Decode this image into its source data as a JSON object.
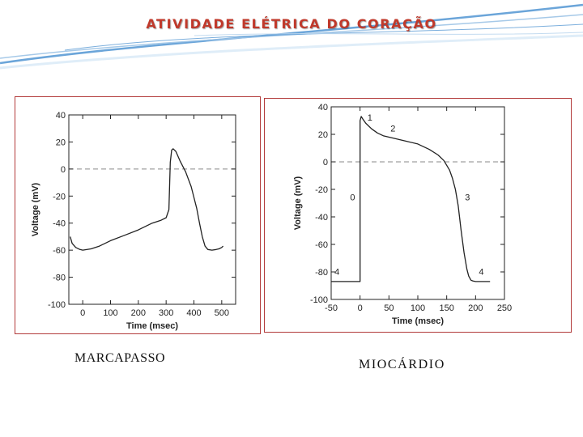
{
  "slide": {
    "title": "ATIVIDADE ELÉTRICA DO CORAÇÃO",
    "caption_left": "MARCAPASSO",
    "caption_right": "MIOCÁRDIO",
    "accent_color": "#c0392b",
    "swoosh_color": "#5b9bd5",
    "frame_color": "#b23a3a"
  },
  "chart_data": [
    {
      "type": "line",
      "title": "",
      "xlabel": "Time (msec)",
      "ylabel": "Voltage (mV)",
      "xlim": [
        -50,
        550
      ],
      "ylim": [
        -100,
        40
      ],
      "xticks": [
        0,
        100,
        200,
        300,
        400,
        500
      ],
      "yticks": [
        40,
        20,
        0,
        -20,
        -40,
        -60,
        -80,
        -100
      ],
      "grid": false,
      "reference_line": {
        "y": 0,
        "style": "dashed"
      },
      "series": [
        {
          "x": [
            -45,
            -38,
            -25,
            -10,
            0,
            30,
            60,
            100,
            150,
            200,
            250,
            280,
            300,
            310,
            315,
            320,
            325,
            335,
            350,
            370,
            390,
            410,
            420,
            430,
            440,
            450,
            465,
            480,
            490,
            500,
            505
          ],
          "y": [
            -50,
            -55,
            -58,
            -59.5,
            -60,
            -59,
            -57,
            -53,
            -49,
            -45,
            -40,
            -38,
            -36,
            -30,
            5,
            14,
            15,
            13,
            6,
            -2,
            -13,
            -29,
            -40,
            -50,
            -57,
            -59.5,
            -60,
            -59.5,
            -59,
            -58,
            -57
          ]
        }
      ],
      "annotations": []
    },
    {
      "type": "line",
      "title": "",
      "xlabel": "Time (msec)",
      "ylabel": "Voltage (mV)",
      "xlim": [
        -50,
        250
      ],
      "ylim": [
        -100,
        40
      ],
      "xticks": [
        -50,
        0,
        50,
        100,
        150,
        200,
        250
      ],
      "yticks": [
        40,
        20,
        0,
        -20,
        -40,
        -60,
        -80,
        -100
      ],
      "grid": false,
      "reference_line": {
        "y": 0,
        "style": "dashed"
      },
      "series": [
        {
          "x": [
            -50,
            -25,
            0,
            0,
            2,
            5,
            10,
            20,
            30,
            40,
            60,
            80,
            100,
            120,
            135,
            145,
            155,
            160,
            165,
            170,
            175,
            180,
            185,
            188,
            192,
            195,
            200,
            210,
            225
          ],
          "y": [
            -87,
            -87,
            -87,
            30,
            33,
            31,
            28,
            24,
            21,
            19,
            17,
            15,
            13,
            9,
            5,
            1,
            -6,
            -12,
            -20,
            -32,
            -50,
            -66,
            -78,
            -83,
            -86,
            -86.5,
            -87,
            -87,
            -87
          ]
        }
      ],
      "annotations": [
        {
          "text": "0",
          "x": -13,
          "y": -28
        },
        {
          "text": "1",
          "x": 17,
          "y": 30
        },
        {
          "text": "2",
          "x": 57,
          "y": 22
        },
        {
          "text": "3",
          "x": 186,
          "y": -28
        },
        {
          "text": "4",
          "x": -40,
          "y": -82
        },
        {
          "text": "4",
          "x": 210,
          "y": -82
        }
      ]
    }
  ]
}
